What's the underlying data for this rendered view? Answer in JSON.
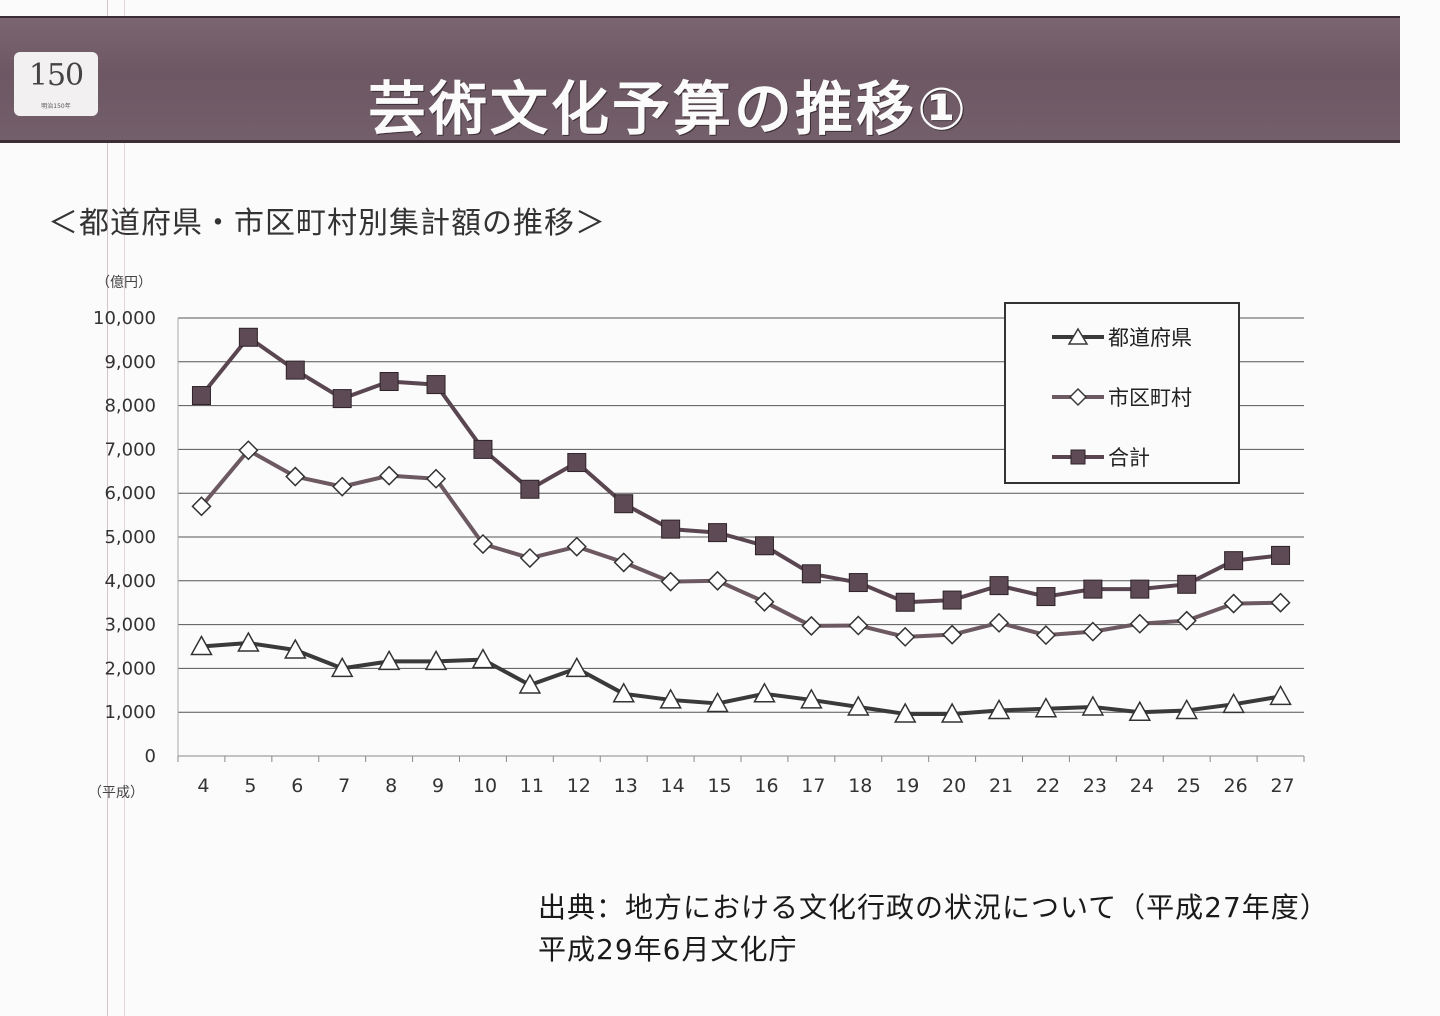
{
  "page_title": "芸術文化予算の推移①",
  "logo": {
    "number": "150",
    "tagline": "明治150年"
  },
  "chart_data": {
    "type": "line",
    "title": "＜都道府県・市区町村別集計額の推移＞",
    "unit_label": "（億円）",
    "era_label": "（平成）",
    "x": [
      4,
      5,
      6,
      7,
      8,
      9,
      10,
      11,
      12,
      13,
      14,
      15,
      16,
      17,
      18,
      19,
      20,
      21,
      22,
      23,
      24,
      25,
      26,
      27
    ],
    "ylim": [
      0,
      10000
    ],
    "yticks": [
      "0",
      "1,000",
      "2,000",
      "3,000",
      "4,000",
      "5,000",
      "6,000",
      "7,000",
      "8,000",
      "9,000",
      "10,000"
    ],
    "grid": true,
    "legend_position": "top-right",
    "series": [
      {
        "name": "都道府県",
        "marker": "triangle",
        "values": [
          2500,
          2580,
          2420,
          2000,
          2160,
          2160,
          2200,
          1620,
          2000,
          1420,
          1280,
          1200,
          1420,
          1280,
          1120,
          960,
          960,
          1040,
          1080,
          1120,
          1000,
          1040,
          1180,
          1360
        ]
      },
      {
        "name": "市区町村",
        "marker": "diamond",
        "values": [
          5700,
          6980,
          6380,
          6150,
          6400,
          6330,
          4840,
          4520,
          4780,
          4420,
          3980,
          4000,
          3520,
          2970,
          2980,
          2720,
          2770,
          3040,
          2760,
          2840,
          3020,
          3090,
          3480,
          3500
        ]
      },
      {
        "name": "合計",
        "marker": "square",
        "values": [
          8230,
          9560,
          8810,
          8160,
          8550,
          8480,
          7000,
          6090,
          6700,
          5760,
          5180,
          5100,
          4800,
          4160,
          3960,
          3510,
          3560,
          3890,
          3640,
          3810,
          3810,
          3920,
          4460,
          4580
        ]
      }
    ]
  },
  "source": {
    "line1": "出典：地方における文化行政の状況について（平成27年度）",
    "line2": "平成29年6月文化庁"
  }
}
